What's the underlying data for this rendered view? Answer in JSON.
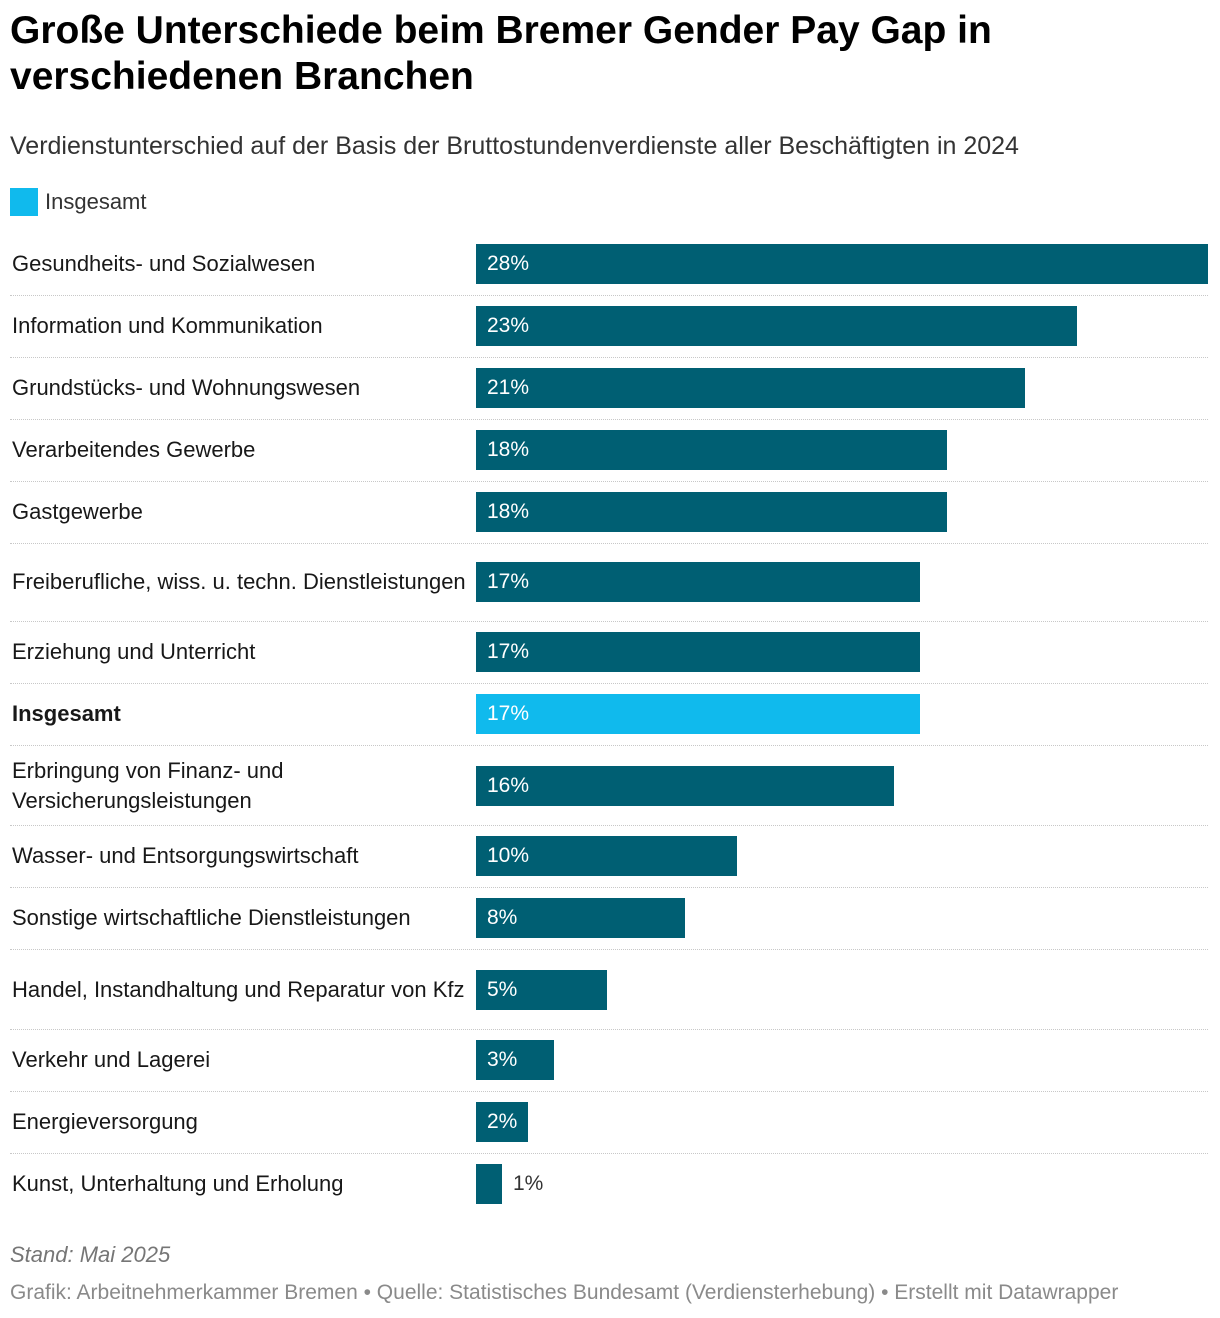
{
  "header": {
    "title": "Große Unterschiede beim Bremer Gender Pay Gap in verschiedenen Branchen",
    "subtitle": "Verdienstunterschied auf der Basis der Bruttostundenverdienste aller Beschäftigten in 2024"
  },
  "legend": {
    "label": "Insgesamt",
    "color": "#10baed"
  },
  "colors": {
    "bar": "#005f73",
    "highlight": "#10baed"
  },
  "chart_data": {
    "type": "bar",
    "orientation": "horizontal",
    "title": "Große Unterschiede beim Bremer Gender Pay Gap in verschiedenen Branchen",
    "xlabel": "",
    "ylabel": "",
    "xlim": [
      0,
      28
    ],
    "unit": "%",
    "categories": [
      "Gesundheits- und Sozialwesen",
      "Information und Kommunikation",
      "Grundstücks- und Wohnungswesen",
      "Verarbeitendes Gewerbe",
      "Gastgewerbe",
      "Freiberufliche, wiss. u. techn. Dienstleistungen",
      "Erziehung und Unterricht",
      "Insgesamt",
      "Erbringung von Finanz- und Versicherungsleistungen",
      "Wasser- und Entsorgungswirtschaft",
      "Sonstige wirtschaftliche Dienstleistungen",
      "Handel, Instandhaltung und Reparatur von Kfz",
      "Verkehr und Lagerei",
      "Energieversorgung",
      "Kunst, Unterhaltung und Erholung"
    ],
    "values": [
      28,
      23,
      21,
      18,
      18,
      17,
      17,
      17,
      16,
      10,
      8,
      5,
      3,
      2,
      1
    ],
    "value_labels": [
      "28%",
      "23%",
      "21%",
      "18%",
      "18%",
      "17%",
      "17%",
      "17%",
      "16%",
      "10%",
      "8%",
      "5%",
      "3%",
      "2%",
      "1%"
    ],
    "highlighted": [
      "Insgesamt"
    ]
  },
  "footer": {
    "date": "Stand: Mai 2025",
    "source": "Grafik: Arbeitnehmerkammer Bremen • Quelle: Statistisches Bundesamt (Verdiensterhebung) • Erstellt mit Datawrapper"
  }
}
